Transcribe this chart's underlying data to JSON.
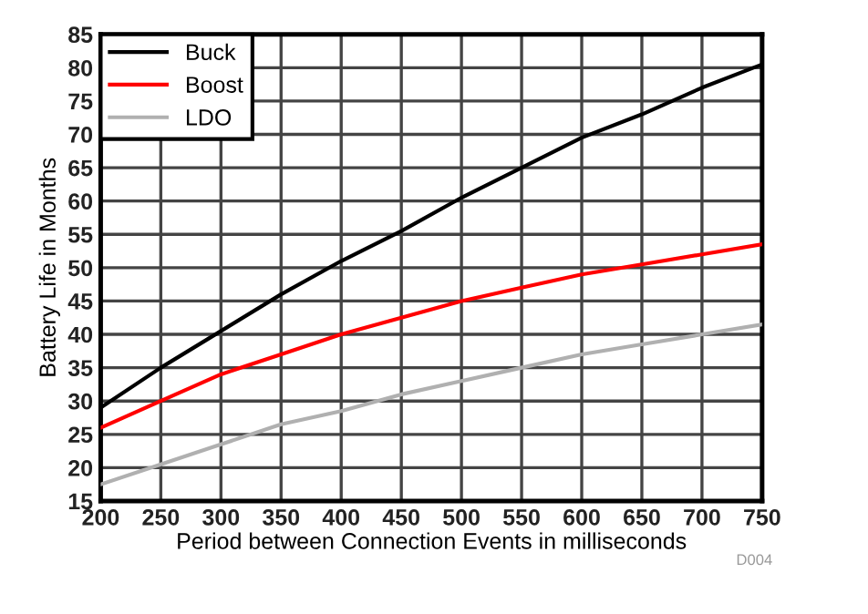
{
  "chart_data": {
    "type": "line",
    "xlabel": "Period between Connection Events in milliseconds",
    "ylabel": "Battery Life in Months",
    "x": [
      200,
      250,
      300,
      350,
      400,
      450,
      500,
      550,
      600,
      650,
      700,
      750
    ],
    "series": [
      {
        "name": "Buck",
        "color": "#000000",
        "values": [
          29,
          35,
          40.5,
          46,
          51,
          55.5,
          60.5,
          65,
          69.5,
          73,
          77,
          80.5
        ]
      },
      {
        "name": "Boost",
        "color": "#ff0000",
        "values": [
          26,
          30,
          34,
          37,
          40,
          42.5,
          45,
          47,
          49,
          50.5,
          52,
          53.5
        ]
      },
      {
        "name": "LDO",
        "color": "#b0b0b0",
        "values": [
          17.5,
          20.5,
          23.5,
          26.5,
          28.5,
          31,
          33,
          35,
          37,
          38.5,
          40,
          41.5
        ]
      }
    ],
    "xlim": [
      200,
      750
    ],
    "xticks": [
      200,
      250,
      300,
      350,
      400,
      450,
      500,
      550,
      600,
      650,
      700,
      750
    ],
    "ylim": [
      15,
      85
    ],
    "yticks": [
      15,
      20,
      25,
      30,
      35,
      40,
      45,
      50,
      55,
      60,
      65,
      70,
      75,
      80,
      85
    ],
    "grid": true,
    "legend": "top left",
    "marker": "none",
    "line_style": "solid",
    "annotations": [
      "D004"
    ]
  }
}
